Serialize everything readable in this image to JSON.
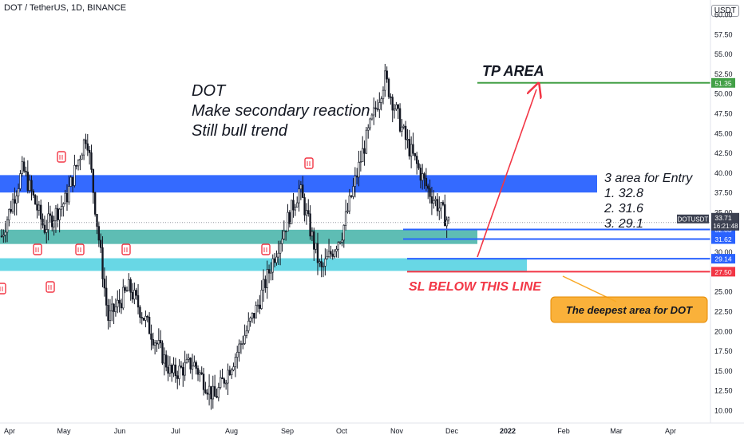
{
  "header": {
    "symbol": "DOT / TetherUS, 1D, BINANCE",
    "currency_label": "USDT"
  },
  "annotations": {
    "main_text": [
      "DOT",
      "Make secondary reaction",
      "Still bull trend"
    ],
    "tp_area": "TP AREA",
    "entry_text": [
      "3 area for Entry",
      "1. 32.8",
      "2. 31.6",
      "3. 29.1"
    ],
    "sl_text": "SL BELOW THIS LINE",
    "deepest_area": "The deepest area for DOT"
  },
  "price_tags": [
    {
      "value": 51.35,
      "label": "51.35",
      "color": "#43a047"
    },
    {
      "value": 32.83,
      "label": "32.83",
      "color": "#2962ff"
    },
    {
      "value": 31.62,
      "label": "31.62",
      "color": "#2962ff"
    },
    {
      "value": 29.14,
      "label": "29.14",
      "color": "#2962ff"
    },
    {
      "value": 27.5,
      "label": "27.50",
      "color": "#f23645"
    }
  ],
  "current_price": {
    "symbol": "DOTUSDT",
    "price": "33.71",
    "countdown": "16:21:48",
    "color": "#3c4151"
  },
  "colors": {
    "up": "#131722",
    "down": "#131722",
    "blue_zone": "#2962ff",
    "teal_zone": "#4db6ac",
    "cyan_zone": "#4dd0e1",
    "tp_line": "#43a047",
    "sl_line": "#f23645",
    "arrow": "#f23645",
    "callout": "#f9a825"
  },
  "chart_data": {
    "type": "candlestick",
    "ylim": [
      10,
      62.5
    ],
    "y_ticks": [
      "10.00",
      "12.50",
      "15.00",
      "17.50",
      "20.00",
      "22.50",
      "25.00",
      "27.50",
      "30.00",
      "32.50",
      "35.00",
      "37.50",
      "40.00",
      "42.50",
      "45.00",
      "47.50",
      "50.00",
      "52.50",
      "55.00",
      "57.50",
      "60.00"
    ],
    "x_ticks": [
      "Apr",
      "May",
      "Jun",
      "Jul",
      "Aug",
      "Sep",
      "Oct",
      "Nov",
      "Dec",
      "2022",
      "Feb",
      "Mar",
      "Apr"
    ],
    "zones": [
      {
        "name": "blue resistance zone",
        "from": 37.5,
        "to": 39.7
      },
      {
        "name": "teal entry zone",
        "from": 31.0,
        "to": 32.8
      },
      {
        "name": "cyan deep zone",
        "from": 27.6,
        "to": 29.2
      }
    ],
    "tp_level": 51.35,
    "sl_level": 27.5,
    "approx_close_path": [
      [
        "Apr",
        32.0
      ],
      [
        "mid-Apr",
        40.5
      ],
      [
        "late-Apr",
        33.0
      ],
      [
        "May",
        36.5
      ],
      [
        "mid-May",
        45.0
      ],
      [
        "late-May",
        21.5
      ],
      [
        "Jun",
        25.5
      ],
      [
        "mid-Jun",
        20.0
      ],
      [
        "late-Jun",
        14.5
      ],
      [
        "Jul",
        16.0
      ],
      [
        "late-Jul",
        11.5
      ],
      [
        "Aug",
        17.0
      ],
      [
        "mid-Aug",
        23.0
      ],
      [
        "Sep",
        31.0
      ],
      [
        "mid-Sep",
        38.0
      ],
      [
        "late-Sep",
        27.5
      ],
      [
        "Oct",
        32.5
      ],
      [
        "mid-Oct",
        43.0
      ],
      [
        "Nov",
        52.0
      ],
      [
        "mid-Nov",
        44.0
      ],
      [
        "late-Nov",
        38.0
      ],
      [
        "Dec",
        33.7
      ]
    ]
  }
}
